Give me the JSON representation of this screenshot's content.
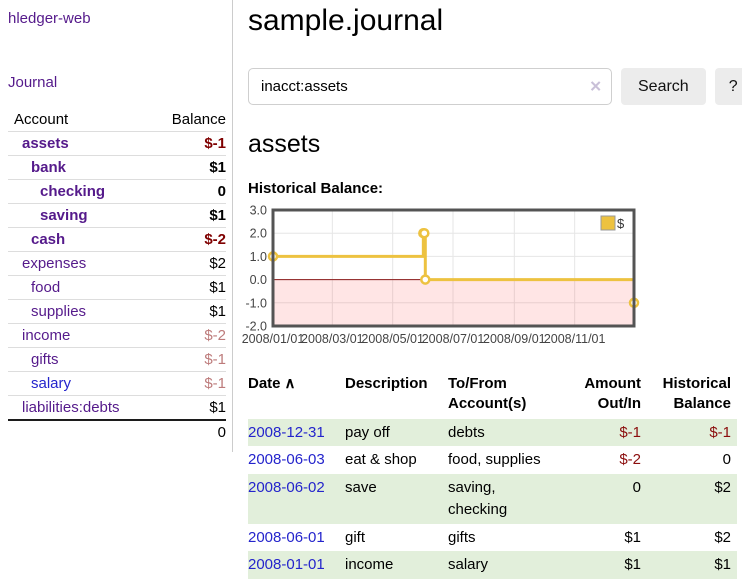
{
  "app": {
    "brand": "hledger-web"
  },
  "nav": {
    "journal": "Journal"
  },
  "sidebar": {
    "header": {
      "account": "Account",
      "balance": "Balance"
    },
    "accounts": [
      {
        "name": "assets",
        "balance": "$-1"
      },
      {
        "name": "bank",
        "balance": "$1"
      },
      {
        "name": "checking",
        "balance": "0"
      },
      {
        "name": "saving",
        "balance": "$1"
      },
      {
        "name": "cash",
        "balance": "$-2"
      },
      {
        "name": "expenses",
        "balance": "$2"
      },
      {
        "name": "food",
        "balance": "$1"
      },
      {
        "name": "supplies",
        "balance": "$1"
      },
      {
        "name": "income",
        "balance": "$-2"
      },
      {
        "name": "gifts",
        "balance": "$-1"
      },
      {
        "name": "salary",
        "balance": "$-1"
      },
      {
        "name": "liabilities:debts",
        "balance": "$1"
      }
    ],
    "total": "0"
  },
  "header": {
    "title": "sample.journal"
  },
  "search": {
    "value": "inacct:assets",
    "clear_icon": "✕",
    "button_label": "Search",
    "help_label": "?"
  },
  "account_page": {
    "title": "assets",
    "chart_label": "Historical Balance:"
  },
  "chart_data": {
    "type": "line",
    "title": "Historical Balance:",
    "step": true,
    "series": [
      {
        "name": "$",
        "color": "#edc240",
        "points": [
          {
            "date": "2008-01-01",
            "value": 1
          },
          {
            "date": "2008-06-01",
            "value": 2
          },
          {
            "date": "2008-06-02",
            "value": 2
          },
          {
            "date": "2008-06-03",
            "value": 0
          },
          {
            "date": "2008-12-31",
            "value": -1
          }
        ]
      }
    ],
    "x_range": [
      "2008-01-01",
      "2008-12-31"
    ],
    "y_range": [
      -2,
      3
    ],
    "x_tick_labels": [
      "2008/01/01",
      "2008/03/01",
      "2008/05/01",
      "2008/07/01",
      "2008/09/01",
      "2008/11/01"
    ],
    "y_tick_labels": [
      "3.0",
      "2.0",
      "1.0",
      "0.0",
      "-1.0",
      "-2.0"
    ],
    "y_grid_values": [
      2,
      1,
      0,
      -1
    ],
    "legend": {
      "label": "$",
      "swatch_color": "#edc240",
      "position": "top-right"
    },
    "grid_color": "#e6e6e6",
    "border_color": "#545454",
    "zero_line_color": "#8b1a1a",
    "negative_fill": "rgba(255,0,0,0.10)",
    "tick_text_color": "#444444"
  },
  "register": {
    "columns": {
      "date": "Date",
      "sort_indicator": "∧",
      "description": "Description",
      "accounts": "To/From Account(s)",
      "amount": "Amount Out/In",
      "balance": "Historical Balance"
    },
    "rows": [
      {
        "date": "2008-12-31",
        "description": "pay off",
        "accounts": "debts",
        "amount": "$-1",
        "balance": "$-1"
      },
      {
        "date": "2008-06-03",
        "description": "eat & shop",
        "accounts": "food, supplies",
        "amount": "$-2",
        "balance": "0"
      },
      {
        "date": "2008-06-02",
        "description": "save",
        "accounts": "saving, checking",
        "amount": "0",
        "balance": "$2"
      },
      {
        "date": "2008-06-01",
        "description": "gift",
        "accounts": "gifts",
        "amount": "$1",
        "balance": "$2"
      },
      {
        "date": "2008-01-01",
        "description": "income",
        "accounts": "salary",
        "amount": "$1",
        "balance": "$1"
      }
    ]
  }
}
